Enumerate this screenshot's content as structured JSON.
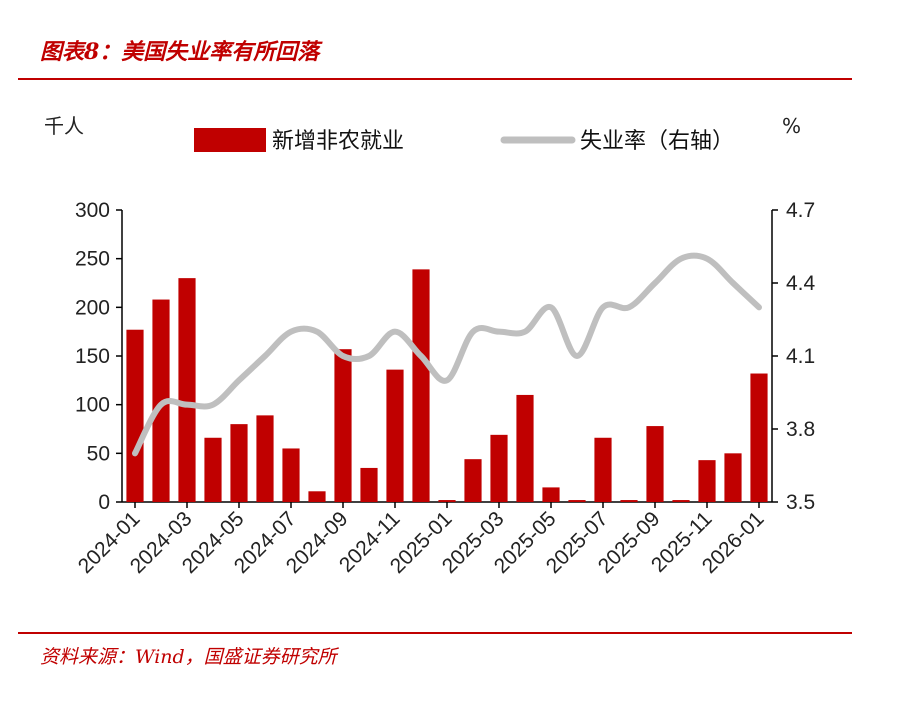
{
  "header": {
    "title": "图表8：美国失业率有所回落"
  },
  "footer": {
    "source": "资料来源：Wind，国盛证券研究所"
  },
  "colors": {
    "accent": "#c00000",
    "bar": "#c00000",
    "line": "#bfbfbf"
  },
  "chart_data": {
    "type": "bar",
    "title": "",
    "units": {
      "left": "千人",
      "right": "%"
    },
    "x": [
      "2024-01",
      "2024-02",
      "2024-03",
      "2024-04",
      "2024-05",
      "2024-06",
      "2024-07",
      "2024-08",
      "2024-09",
      "2024-10",
      "2024-11",
      "2024-12",
      "2025-01",
      "2025-02",
      "2025-03",
      "2025-04",
      "2025-05",
      "2025-06",
      "2025-07",
      "2025-08",
      "2025-09",
      "2025-10",
      "2025-11",
      "2025-12",
      "2026-01"
    ],
    "x_tick_labels": [
      "2024-01",
      "2024-03",
      "2024-05",
      "2024-07",
      "2024-09",
      "2024-11",
      "2025-01",
      "2025-03",
      "2025-05",
      "2025-07",
      "2025-09",
      "2025-11",
      "2026-01"
    ],
    "left_axis": {
      "range": [
        0,
        300
      ],
      "ticks": [
        "0",
        "50",
        "100",
        "150",
        "200",
        "250",
        "300"
      ]
    },
    "right_axis": {
      "range": [
        3.5,
        4.7
      ],
      "ticks": [
        "3.5",
        "3.8",
        "4.1",
        "4.4",
        "4.7"
      ]
    },
    "legend": {
      "placement": "top"
    },
    "grid": false,
    "series": [
      {
        "name": "新增非农就业",
        "type": "bar",
        "axis": "left",
        "values": [
          177,
          208,
          230,
          66,
          80,
          89,
          55,
          11,
          157,
          35,
          136,
          239,
          2,
          44,
          69,
          110,
          15,
          2,
          66,
          2,
          78,
          2,
          43,
          50,
          132
        ]
      },
      {
        "name": "失业率（右轴）",
        "type": "line",
        "axis": "right",
        "values": [
          3.7,
          3.9,
          3.9,
          3.9,
          4.0,
          4.1,
          4.2,
          4.2,
          4.1,
          4.1,
          4.2,
          4.1,
          4.0,
          4.2,
          4.2,
          4.2,
          4.3,
          4.1,
          4.3,
          4.3,
          4.4,
          4.5,
          4.5,
          4.4,
          4.3
        ]
      }
    ]
  }
}
